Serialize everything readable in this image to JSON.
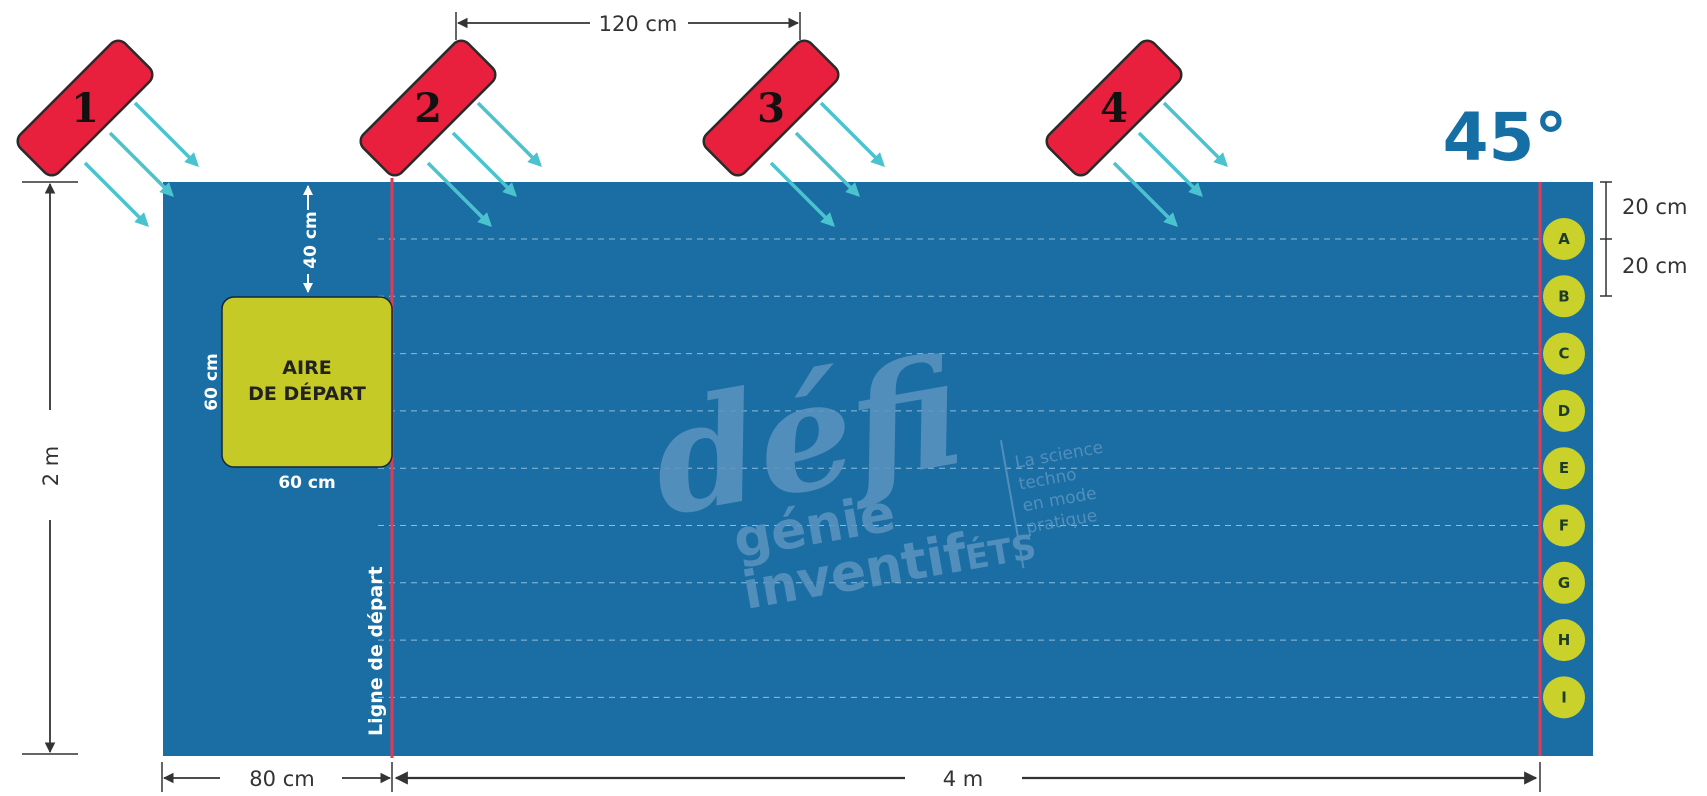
{
  "dimensions": {
    "top": "120 cm",
    "gap1": "20 cm",
    "gap2": "20 cm",
    "height": "2 m",
    "offset": "80 cm",
    "length": "4 m",
    "box_top": "40 cm",
    "box_side": "60 cm",
    "box_bottom": "60 cm"
  },
  "angle_label": "45°",
  "start_area": {
    "line1": "AIRE",
    "line2": "DE DÉPART"
  },
  "start_line_label": "Ligne de départ",
  "fans": [
    {
      "label": "1"
    },
    {
      "label": "2"
    },
    {
      "label": "3"
    },
    {
      "label": "4"
    }
  ],
  "targets": [
    "A",
    "B",
    "C",
    "D",
    "E",
    "F",
    "G",
    "H",
    "I"
  ],
  "watermark": {
    "word1": "défi",
    "word2": "génie",
    "word3": "inventif",
    "word4": "ÉTS",
    "tagline1": "La science",
    "tagline2": "techno",
    "tagline3": "en mode",
    "tagline4": "pratique"
  },
  "colors": {
    "field": "#1a6ea3",
    "fan": "#e8203e",
    "wind": "#4ac3cf",
    "target": "#c9d12a",
    "start_area": "#c5ca26",
    "line": "#e23a55"
  }
}
